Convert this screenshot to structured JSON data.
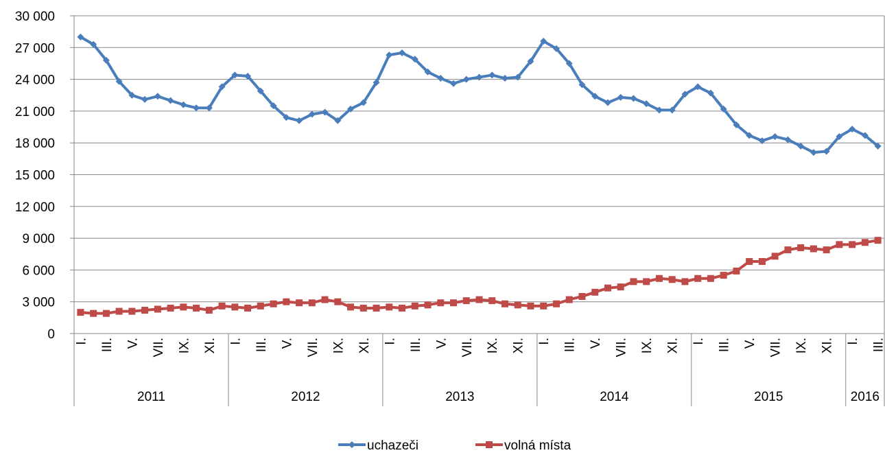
{
  "chart_data": {
    "type": "line",
    "categories": [
      "I.",
      null,
      "III.",
      null,
      "V.",
      null,
      "VII.",
      null,
      "IX.",
      null,
      "XI.",
      null,
      "I.",
      null,
      "III.",
      null,
      "V.",
      null,
      "VII.",
      null,
      "IX.",
      null,
      "XI.",
      null,
      "I.",
      null,
      "III.",
      null,
      "V.",
      null,
      "VII.",
      null,
      "IX.",
      null,
      "XI.",
      null,
      "I.",
      null,
      "III.",
      null,
      "V.",
      null,
      "VII.",
      null,
      "IX.",
      null,
      "XI.",
      null,
      "I.",
      null,
      "III.",
      null,
      "V.",
      null,
      "VII.",
      null,
      "IX.",
      null,
      "XI.",
      null,
      "I.",
      null,
      "III."
    ],
    "x_groups": [
      {
        "label": "2011",
        "size": 12
      },
      {
        "label": "2012",
        "size": 12
      },
      {
        "label": "2013",
        "size": 12
      },
      {
        "label": "2014",
        "size": 12
      },
      {
        "label": "2015",
        "size": 12
      },
      {
        "label": "2016",
        "size": 3
      }
    ],
    "series": [
      {
        "name": "uchazeči",
        "color": "#4a7ebb",
        "marker": "diamond",
        "values": [
          28000,
          27300,
          25800,
          23800,
          22500,
          22100,
          22400,
          22000,
          21600,
          21300,
          21300,
          23300,
          24400,
          24300,
          22900,
          21500,
          20400,
          20100,
          20700,
          20900,
          20100,
          21200,
          21800,
          23700,
          26300,
          26500,
          25900,
          24700,
          24100,
          23600,
          24000,
          24200,
          24400,
          24100,
          24200,
          25700,
          27600,
          26900,
          25500,
          23500,
          22400,
          21800,
          22300,
          22200,
          21700,
          21100,
          21100,
          22600,
          23300,
          22700,
          21200,
          19700,
          18700,
          18200,
          18600,
          18300,
          17700,
          17100,
          17200,
          18600,
          19300,
          18700,
          17700
        ]
      },
      {
        "name": "volná místa",
        "color": "#be4b48",
        "marker": "square",
        "values": [
          2000,
          1900,
          1900,
          2100,
          2100,
          2200,
          2300,
          2400,
          2500,
          2400,
          2200,
          2600,
          2500,
          2400,
          2600,
          2800,
          3000,
          2900,
          2900,
          3200,
          3000,
          2500,
          2400,
          2400,
          2500,
          2400,
          2600,
          2700,
          2900,
          2900,
          3100,
          3200,
          3100,
          2800,
          2700,
          2600,
          2600,
          2800,
          3200,
          3500,
          3900,
          4300,
          4400,
          4900,
          4900,
          5200,
          5100,
          4900,
          5200,
          5200,
          5500,
          5900,
          6800,
          6800,
          7300,
          7900,
          8100,
          8000,
          7900,
          8400,
          8400,
          8600,
          8800
        ]
      }
    ],
    "ylim": [
      0,
      30000
    ],
    "yticks": [
      0,
      {
        "value": 3000,
        "label": "3 000"
      },
      {
        "value": 6000,
        "label": "6 000"
      },
      {
        "value": 9000,
        "label": "9 000"
      },
      {
        "value": 12000,
        "label": "12 000"
      },
      {
        "value": 15000,
        "label": "15 000"
      },
      {
        "value": 18000,
        "label": "18 000"
      },
      {
        "value": 21000,
        "label": "21 000"
      },
      {
        "value": 24000,
        "label": "24 000"
      },
      {
        "value": 27000,
        "label": "27 000"
      },
      {
        "value": 30000,
        "label": "30 000"
      }
    ],
    "grid": true,
    "legend": "bottom"
  }
}
